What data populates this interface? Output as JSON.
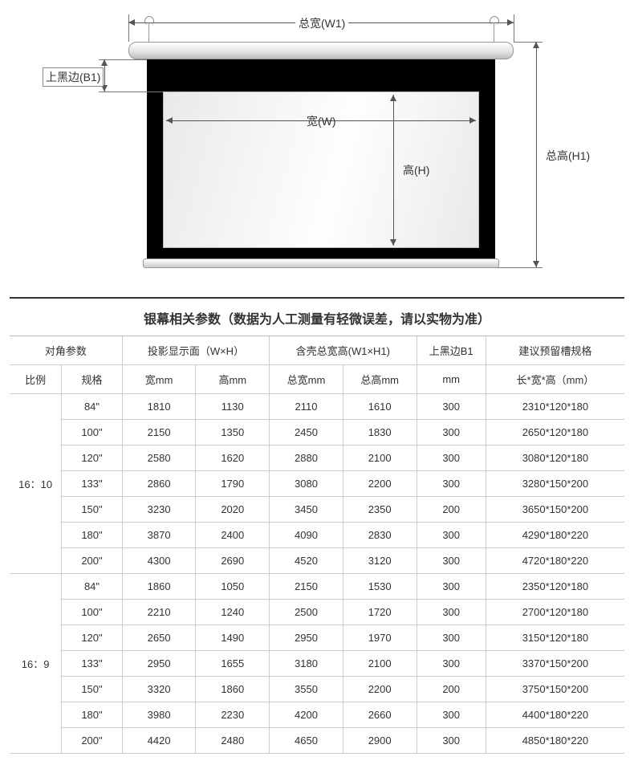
{
  "diagram": {
    "total_width_label": "总宽(W1)",
    "total_height_label": "总高(H1)",
    "top_black_label": "上黑边(B1)",
    "width_label": "宽(W)",
    "height_label": "高(H)",
    "colors": {
      "black_border": "#000000",
      "view_area_light": "#fefefe",
      "view_area_shade": "#e9e9e9",
      "housing_light": "#ffffff",
      "housing_dark": "#bdbdbd",
      "dim_line": "#555555",
      "text": "#333333"
    }
  },
  "table": {
    "title": "银幕相关参数（数据为人工测量有轻微误差，请以实物为准）",
    "header_group": {
      "diag": "对角参数",
      "display": "投影显示面（W×H）",
      "overall": "含壳总宽高(W1×H1)",
      "top_black": "上黑边B1",
      "slot": "建议预留槽规格"
    },
    "header_sub": {
      "ratio": "比例",
      "spec": "规格",
      "w": "宽mm",
      "h": "高mm",
      "w1": "总宽mm",
      "h1": "总高mm",
      "b1": "mm",
      "slot": "长*宽*高（mm）"
    },
    "groups": [
      {
        "ratio": "16：10",
        "rows": [
          {
            "spec": "84\"",
            "w": "1810",
            "h": "1130",
            "w1": "2110",
            "h1": "1610",
            "b1": "300",
            "slot": "2310*120*180"
          },
          {
            "spec": "100\"",
            "w": "2150",
            "h": "1350",
            "w1": "2450",
            "h1": "1830",
            "b1": "300",
            "slot": "2650*120*180"
          },
          {
            "spec": "120\"",
            "w": "2580",
            "h": "1620",
            "w1": "2880",
            "h1": "2100",
            "b1": "300",
            "slot": "3080*120*180"
          },
          {
            "spec": "133\"",
            "w": "2860",
            "h": "1790",
            "w1": "3080",
            "h1": "2200",
            "b1": "300",
            "slot": "3280*150*200"
          },
          {
            "spec": "150\"",
            "w": "3230",
            "h": "2020",
            "w1": "3450",
            "h1": "2350",
            "b1": "200",
            "slot": "3650*150*200"
          },
          {
            "spec": "180\"",
            "w": "3870",
            "h": "2400",
            "w1": "4090",
            "h1": "2830",
            "b1": "300",
            "slot": "4290*180*220"
          },
          {
            "spec": "200\"",
            "w": "4300",
            "h": "2690",
            "w1": "4520",
            "h1": "3120",
            "b1": "300",
            "slot": "4720*180*220"
          }
        ]
      },
      {
        "ratio": "16：9",
        "rows": [
          {
            "spec": "84\"",
            "w": "1860",
            "h": "1050",
            "w1": "2150",
            "h1": "1530",
            "b1": "300",
            "slot": "2350*120*180"
          },
          {
            "spec": "100\"",
            "w": "2210",
            "h": "1240",
            "w1": "2500",
            "h1": "1720",
            "b1": "300",
            "slot": "2700*120*180"
          },
          {
            "spec": "120\"",
            "w": "2650",
            "h": "1490",
            "w1": "2950",
            "h1": "1970",
            "b1": "300",
            "slot": "3150*120*180"
          },
          {
            "spec": "133\"",
            "w": "2950",
            "h": "1655",
            "w1": "3180",
            "h1": "2100",
            "b1": "300",
            "slot": "3370*150*200"
          },
          {
            "spec": "150\"",
            "w": "3320",
            "h": "1860",
            "w1": "3550",
            "h1": "2200",
            "b1": "200",
            "slot": "3750*150*200"
          },
          {
            "spec": "180\"",
            "w": "3980",
            "h": "2230",
            "w1": "4200",
            "h1": "2660",
            "b1": "300",
            "slot": "4400*180*220"
          },
          {
            "spec": "200\"",
            "w": "4420",
            "h": "2480",
            "w1": "4650",
            "h1": "2900",
            "b1": "300",
            "slot": "4850*180*220"
          }
        ]
      }
    ]
  }
}
